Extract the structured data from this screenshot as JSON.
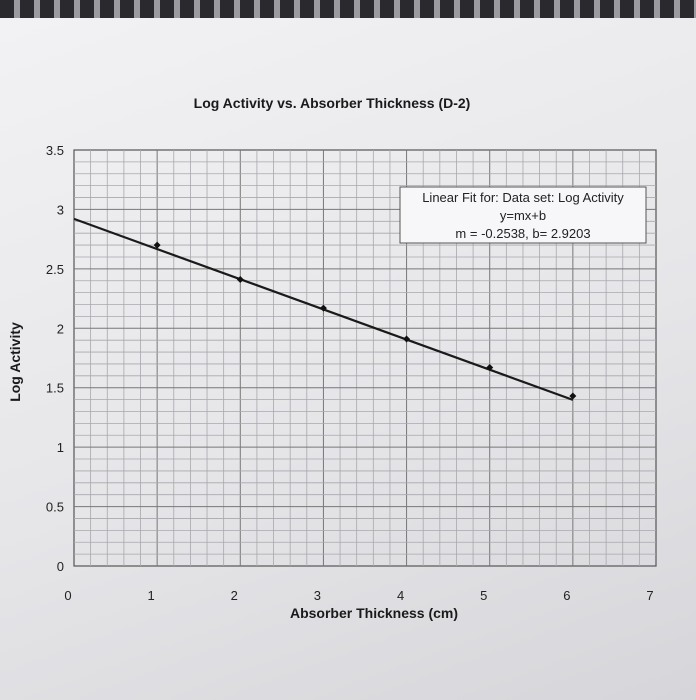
{
  "chart_data": {
    "type": "scatter",
    "title": "Log Activity vs. Absorber Thickness (D-2)",
    "xlabel": "Absorber Thickness (cm)",
    "ylabel": "Log Activity",
    "xlim": [
      0,
      7
    ],
    "ylim": [
      0,
      3.5
    ],
    "x_ticks": [
      "0",
      "1",
      "2",
      "3",
      "4",
      "5",
      "6",
      "7"
    ],
    "y_ticks": [
      "0",
      "0.5",
      "1",
      "1.5",
      "2",
      "2.5",
      "3",
      "3.5"
    ],
    "grid": true,
    "series": [
      {
        "x": [
          1,
          2,
          3,
          4,
          5,
          6
        ],
        "y": [
          2.7,
          2.41,
          2.17,
          1.91,
          1.67,
          1.43
        ]
      }
    ],
    "fit": {
      "m": -0.2538,
      "b": 2.9203,
      "x_range": [
        0,
        6
      ]
    },
    "annotation": {
      "line1": "Linear Fit for: Data set: Log Activity",
      "line2": "y=mx+b",
      "line3": "m = -0.2538,  b= 2.9203"
    }
  }
}
